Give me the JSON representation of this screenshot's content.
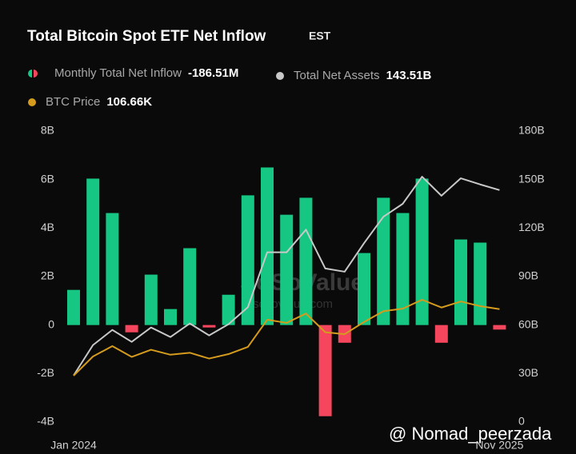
{
  "chart_data": {
    "type": "combo",
    "title": "Total Bitcoin Spot ETF Net Inflow",
    "subtitle": "EST",
    "categories": [
      "Jan 2024",
      null,
      null,
      null,
      null,
      null,
      null,
      null,
      null,
      null,
      null,
      null,
      null,
      null,
      null,
      null,
      null,
      null,
      null,
      null,
      null,
      null,
      "Nov 2025"
    ],
    "series": [
      {
        "name": "Monthly Total Net Inflow",
        "type": "bar",
        "color": "#16c784",
        "negative_color": "#f6465d",
        "values": [
          1.45,
          6.04,
          4.62,
          -0.3,
          2.08,
          0.66,
          3.17,
          -0.1,
          1.25,
          5.35,
          6.5,
          4.55,
          5.25,
          -3.76,
          -0.73,
          2.97,
          5.25,
          4.62,
          6.04,
          -0.73,
          3.53,
          3.4,
          -0.18651
        ],
        "value_labels": [
          null,
          null,
          null,
          null,
          null,
          null,
          null,
          null,
          null,
          null,
          null,
          null,
          null,
          null,
          null,
          null,
          null,
          null,
          null,
          null,
          null,
          null,
          "-186.51M"
        ]
      },
      {
        "name": "Total Net Assets",
        "type": "line",
        "axis": "y2",
        "color": "#c8c8c8",
        "values": [
          28.8,
          47.6,
          57,
          49.6,
          58.5,
          52.6,
          61,
          53.6,
          60.5,
          71,
          105,
          105,
          119,
          95,
          93,
          110.6,
          127,
          135,
          151.8,
          140,
          150.8,
          147,
          143.51
        ],
        "value_labels": [
          null,
          null,
          null,
          null,
          null,
          null,
          null,
          null,
          null,
          null,
          null,
          null,
          null,
          null,
          null,
          null,
          null,
          null,
          null,
          null,
          null,
          null,
          "143.51B"
        ]
      },
      {
        "name": "BTC Price",
        "type": "line",
        "axis": "unscaled",
        "color": "#d49b1d",
        "values": [
          42.5,
          61,
          71,
          60.6,
          67.5,
          62.7,
          64.6,
          59,
          63.3,
          70.2,
          96.4,
          93.4,
          102.4,
          84.4,
          82.5,
          94.2,
          104.6,
          107.1,
          115.7,
          108.2,
          114,
          109.5,
          106.66
        ],
        "value_labels": [
          null,
          null,
          null,
          null,
          null,
          null,
          null,
          null,
          null,
          null,
          null,
          null,
          null,
          null,
          null,
          null,
          null,
          null,
          null,
          null,
          null,
          null,
          "106.66K"
        ]
      }
    ],
    "ylim": [
      -4,
      8
    ],
    "yticks": [
      {
        "value": -4,
        "label": "-4B"
      },
      {
        "value": -2,
        "label": "-2B"
      },
      0,
      {
        "value": 2,
        "label": "2B"
      },
      {
        "value": 4,
        "label": "4B"
      },
      {
        "value": 6,
        "label": "6B"
      },
      {
        "value": 8,
        "label": "8B"
      }
    ],
    "y2lim": [
      0,
      180
    ],
    "y2ticks": [
      0,
      {
        "value": 30,
        "label": "30B"
      },
      {
        "value": 60,
        "label": "60B"
      },
      {
        "value": 90,
        "label": "90B"
      },
      {
        "value": 120,
        "label": "120B"
      },
      {
        "value": 150,
        "label": "150B"
      },
      {
        "value": 180,
        "label": "180B"
      }
    ],
    "grid": false,
    "watermark": [
      "SoSoValue",
      "sosovalue.com"
    ],
    "credit": "@ Nomad_peerzada"
  }
}
